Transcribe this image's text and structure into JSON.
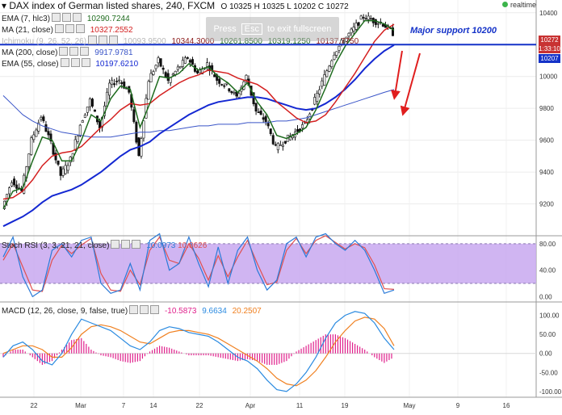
{
  "header": {
    "title": "DAX index of German listed shares, 240, FXCM",
    "ohlc": {
      "o_label": "O",
      "o": "10325",
      "h_label": "H",
      "h": "10325",
      "l_label": "L",
      "l": "10202",
      "c_label": "C",
      "c": "10272"
    },
    "realtime_label": "realtime",
    "fullscreen_hint": {
      "prefix": "Press",
      "key": "Esc",
      "suffix": "to exit fullscreen"
    }
  },
  "legends": {
    "ema7": {
      "label": "EMA (7, hlc3)",
      "value": "10290.7244"
    },
    "ma21": {
      "label": "MA (21, close)",
      "value": "10327.2552"
    },
    "ichimoku": {
      "label": "Ichimoku (9, 26, 52, 26)",
      "v1": "10093.9500",
      "v2": "10344.3000",
      "v3": "10261.8500",
      "v4": "10319.1250",
      "v5": "10137.7750"
    },
    "ma200": {
      "label": "MA (200, close)",
      "value": "9917.9781"
    },
    "ema55": {
      "label": "EMA (55, close)",
      "value": "10197.6210"
    },
    "stoch": {
      "label": "Stoch RSI (3, 3, 21, 21, close)",
      "k": "10.0973",
      "d": "10.8626"
    },
    "macd": {
      "label": "MACD (12, 26, close, 9, false, true)",
      "hist": "-10.5873",
      "macd": "9.6634",
      "signal": "20.2507"
    }
  },
  "annotation": {
    "text": "Major support 10200"
  },
  "price_tags": {
    "last": "10272",
    "timer": "1:33:10",
    "support": "10207"
  },
  "colors": {
    "ema7": "#1e6b1e",
    "ma21": "#d42020",
    "ema55": "#1428d2",
    "ma200": "#3a55c8",
    "support_line": "#1432c8",
    "arrows": "#e01e1e",
    "stoch_band": "#c8a8f0",
    "stoch_k": "#2a7ad8",
    "stoch_d": "#e05050",
    "macd_line": "#2a8ae0",
    "signal_line": "#f08020",
    "hist": "#e0208c",
    "axis_text": "#333333"
  },
  "chart_data": [
    {
      "type": "candlestick",
      "title": "DAX index of German listed shares, 240, FXCM",
      "x_ticks": [
        "22",
        "Mar",
        "7",
        "14",
        "22",
        "Apr",
        "11",
        "19",
        "May",
        "9",
        "16"
      ],
      "y_ticks": [
        9200,
        9400,
        9600,
        9800,
        10000,
        10200,
        10400
      ],
      "ylim": [
        9000,
        10480
      ],
      "support_level": 10200,
      "price_path": [
        9170,
        9350,
        9280,
        9600,
        9750,
        9580,
        9380,
        9480,
        9700,
        9850,
        9680,
        9950,
        9980,
        9900,
        9500,
        9980,
        10100,
        9970,
        10050,
        10120,
        10020,
        10080,
        9980,
        9940,
        9870,
        10000,
        9780,
        9720,
        9550,
        9600,
        9650,
        9700,
        9850,
        10000,
        10150,
        10230,
        10300,
        10380,
        10350,
        10330,
        10272
      ],
      "ema7": [
        9170,
        9280,
        9300,
        9470,
        9620,
        9600,
        9470,
        9470,
        9600,
        9760,
        9720,
        9860,
        9940,
        9920,
        9680,
        9830,
        10000,
        9990,
        10020,
        10080,
        10040,
        10060,
        10000,
        9960,
        9900,
        9960,
        9840,
        9760,
        9630,
        9610,
        9640,
        9680,
        9790,
        9930,
        10080,
        10190,
        10270,
        10350,
        10350,
        10330,
        10290
      ],
      "ma21": [
        9230,
        9240,
        9280,
        9350,
        9440,
        9500,
        9520,
        9530,
        9560,
        9620,
        9680,
        9730,
        9790,
        9830,
        9820,
        9830,
        9880,
        9920,
        9960,
        9990,
        10010,
        10040,
        10030,
        10020,
        9990,
        9970,
        9950,
        9910,
        9840,
        9790,
        9740,
        9710,
        9720,
        9760,
        9840,
        9930,
        10020,
        10120,
        10220,
        10290,
        10327
      ],
      "ema55": [
        9060,
        9090,
        9120,
        9160,
        9210,
        9250,
        9270,
        9290,
        9320,
        9360,
        9400,
        9450,
        9500,
        9540,
        9560,
        9590,
        9640,
        9680,
        9720,
        9760,
        9790,
        9820,
        9840,
        9850,
        9860,
        9870,
        9870,
        9860,
        9840,
        9820,
        9800,
        9790,
        9800,
        9830,
        9870,
        9920,
        9980,
        10050,
        10110,
        10160,
        10197
      ],
      "ma200": [
        9880,
        9820,
        9760,
        9720,
        9690,
        9670,
        9650,
        9640,
        9630,
        9620,
        9620,
        9620,
        9630,
        9640,
        9650,
        9650,
        9660,
        9660,
        9670,
        9680,
        9690,
        9690,
        9700,
        9700,
        9700,
        9710,
        9710,
        9710,
        9720,
        9720,
        9730,
        9740,
        9760,
        9780,
        9800,
        9820,
        9840,
        9860,
        9880,
        9900,
        9918
      ]
    },
    {
      "type": "line",
      "title": "Stoch RSI (3, 3, 21, 21, close)",
      "y_ticks": [
        0,
        40,
        80
      ],
      "ylim": [
        -8,
        92
      ],
      "band": [
        20,
        80
      ],
      "k": [
        60,
        90,
        30,
        0,
        10,
        70,
        80,
        60,
        85,
        90,
        20,
        5,
        10,
        50,
        10,
        85,
        95,
        40,
        50,
        90,
        50,
        15,
        75,
        20,
        70,
        90,
        40,
        10,
        25,
        80,
        90,
        60,
        90,
        95,
        80,
        70,
        85,
        70,
        40,
        5,
        10
      ],
      "d": [
        55,
        80,
        45,
        10,
        8,
        55,
        78,
        65,
        78,
        88,
        35,
        10,
        8,
        40,
        18,
        70,
        90,
        55,
        50,
        80,
        58,
        25,
        62,
        30,
        60,
        85,
        50,
        18,
        22,
        70,
        88,
        65,
        85,
        92,
        82,
        72,
        80,
        74,
        48,
        12,
        11
      ]
    },
    {
      "type": "line",
      "title": "MACD (12, 26, close, 9, false, true)",
      "y_ticks": [
        -100,
        -50,
        0,
        50,
        100
      ],
      "ylim": [
        -115,
        135
      ],
      "macd": [
        -10,
        20,
        30,
        10,
        -20,
        -30,
        0,
        50,
        90,
        80,
        70,
        60,
        40,
        20,
        10,
        30,
        60,
        70,
        65,
        55,
        50,
        45,
        30,
        10,
        -10,
        -20,
        -40,
        -70,
        -95,
        -100,
        -80,
        -50,
        -10,
        40,
        80,
        100,
        110,
        105,
        80,
        40,
        10
      ],
      "signal": [
        0,
        10,
        20,
        20,
        10,
        -10,
        -10,
        15,
        50,
        70,
        75,
        70,
        60,
        45,
        30,
        25,
        40,
        55,
        60,
        60,
        55,
        50,
        40,
        25,
        10,
        -5,
        -20,
        -40,
        -65,
        -80,
        -85,
        -70,
        -45,
        -10,
        30,
        60,
        85,
        95,
        90,
        65,
        20
      ]
    }
  ]
}
